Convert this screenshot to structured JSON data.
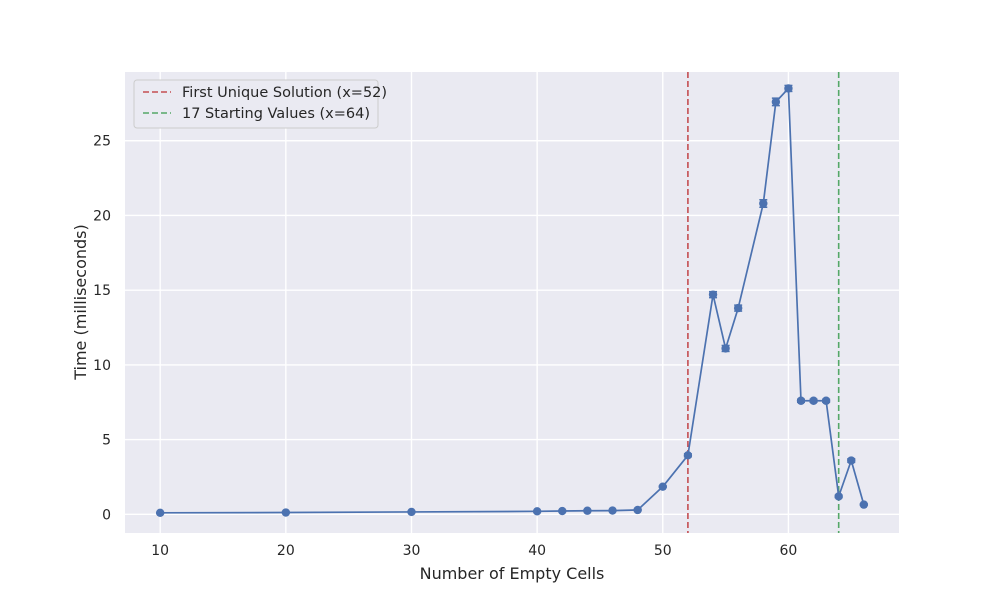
{
  "chart_data": {
    "type": "line",
    "xlabel": "Number of Empty Cells",
    "ylabel": "Time (milliseconds)",
    "xlim": [
      7.2,
      68.8
    ],
    "ylim": [
      -1.25,
      29.6
    ],
    "xticks": [
      10,
      20,
      30,
      40,
      50,
      60
    ],
    "yticks": [
      0,
      5,
      10,
      15,
      20,
      25
    ],
    "grid": true,
    "legend_position": "top-left",
    "series": [
      {
        "color": "#4c72b0",
        "marker": "circle",
        "error_bars": true,
        "x": [
          10,
          20,
          30,
          40,
          42,
          44,
          46,
          48,
          50,
          52,
          54,
          55,
          56,
          58,
          59,
          60,
          61,
          62,
          63,
          64,
          65,
          66
        ],
        "values": [
          0.1,
          0.12,
          0.16,
          0.2,
          0.22,
          0.24,
          0.25,
          0.29,
          1.85,
          3.95,
          14.7,
          11.1,
          13.8,
          20.8,
          27.6,
          28.5,
          7.6,
          7.6,
          7.6,
          1.2,
          3.6,
          0.65
        ],
        "errors": [
          0.03,
          0.03,
          0.03,
          0.03,
          0.03,
          0.03,
          0.03,
          0.03,
          0.05,
          0.1,
          0.2,
          0.2,
          0.2,
          0.25,
          0.25,
          0.2,
          0.1,
          0.1,
          0.1,
          0.08,
          0.12,
          0.05
        ]
      }
    ],
    "vlines": [
      {
        "x": 52,
        "label": "First Unique Solution (x=52)",
        "color": "#c44e52",
        "style": "dashed"
      },
      {
        "x": 64,
        "label": "17 Starting Values (x=64)",
        "color": "#55a868",
        "style": "dashed"
      }
    ],
    "plot_background": "#eaeaf2",
    "grid_color": "#ffffff"
  }
}
